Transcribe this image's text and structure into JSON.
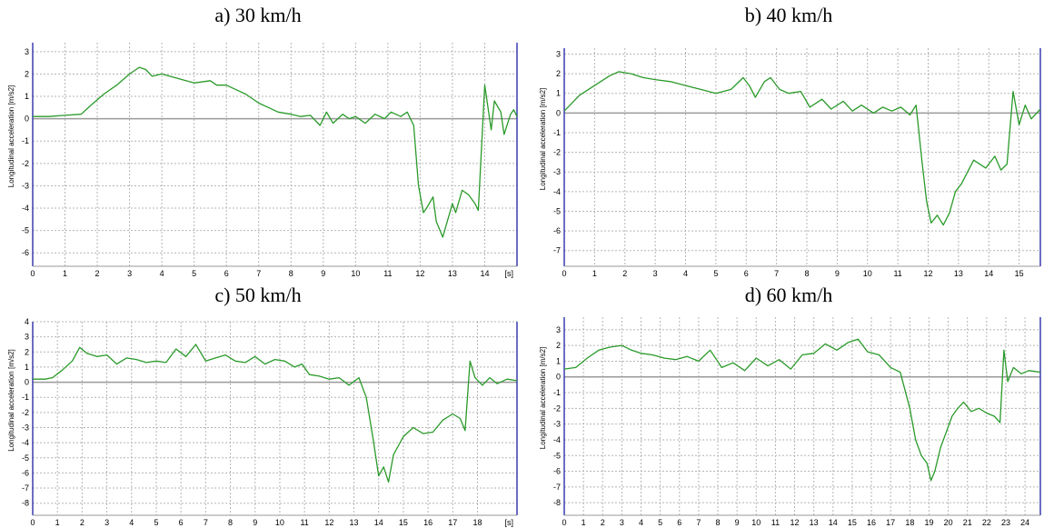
{
  "chart_data": [
    {
      "type": "line",
      "title": "a) 30 km/h",
      "ylabel": "Longitudinal acceleration [m/s2]",
      "x_unit": "[s]",
      "xlim": [
        0,
        15
      ],
      "ylim": [
        -6.6,
        3.4
      ],
      "xticks": [
        "0",
        "1",
        "2",
        "3",
        "4",
        "5",
        "6",
        "7",
        "8",
        "9",
        "10",
        "11",
        "12",
        "13",
        "14"
      ],
      "yticks": [
        "3",
        "2",
        "1",
        "0",
        "-1",
        "-2",
        "-3",
        "-4",
        "-5",
        "-6"
      ],
      "grid": true,
      "line_color": "#2a9a2a",
      "x": [
        0,
        0.5,
        1,
        1.5,
        1.8,
        2.2,
        2.6,
        3,
        3.3,
        3.5,
        3.7,
        4,
        4.5,
        5,
        5.5,
        5.7,
        6,
        6.3,
        6.6,
        7,
        7.3,
        7.6,
        8,
        8.3,
        8.6,
        8.9,
        9.1,
        9.3,
        9.6,
        9.8,
        10,
        10.3,
        10.6,
        10.9,
        11.1,
        11.4,
        11.6,
        11.8,
        11.95,
        12.1,
        12.2,
        12.4,
        12.5,
        12.7,
        12.8,
        13,
        13.1,
        13.3,
        13.5,
        13.7,
        13.8,
        14,
        14.2,
        14.3,
        14.5,
        14.6,
        14.8,
        14.9,
        15
      ],
      "values": [
        0.1,
        0.1,
        0.15,
        0.2,
        0.6,
        1.1,
        1.5,
        2.0,
        2.3,
        2.2,
        1.9,
        2.0,
        1.8,
        1.6,
        1.7,
        1.5,
        1.5,
        1.3,
        1.1,
        0.7,
        0.5,
        0.3,
        0.2,
        0.1,
        0.15,
        -0.3,
        0.3,
        -0.2,
        0.2,
        0.0,
        0.1,
        -0.2,
        0.2,
        0.0,
        0.3,
        0.1,
        0.3,
        -0.3,
        -3.0,
        -4.2,
        -4.0,
        -3.5,
        -4.6,
        -5.3,
        -4.8,
        -3.8,
        -4.2,
        -3.2,
        -3.4,
        -3.8,
        -4.1,
        1.5,
        -0.5,
        0.8,
        0.3,
        -0.7,
        0.2,
        0.4,
        0.1
      ]
    },
    {
      "type": "line",
      "title": "b) 40 km/h",
      "ylabel": "Longitudinal acceleration [m/s2]",
      "x_unit": "",
      "xlim": [
        0,
        15.7
      ],
      "ylim": [
        -7.8,
        3.3
      ],
      "xticks": [
        "0",
        "1",
        "2",
        "3",
        "4",
        "5",
        "6",
        "7",
        "8",
        "9",
        "10",
        "11",
        "12",
        "13",
        "14",
        "15"
      ],
      "yticks": [
        "3",
        "2",
        "1",
        "0",
        "-1",
        "-2",
        "-3",
        "-4",
        "-5",
        "-6",
        "-7"
      ],
      "grid": true,
      "line_color": "#2a9a2a",
      "x": [
        0,
        0.5,
        1,
        1.5,
        1.8,
        2.2,
        2.6,
        3,
        3.5,
        4,
        4.5,
        5,
        5.5,
        5.9,
        6.1,
        6.3,
        6.6,
        6.8,
        7.1,
        7.4,
        7.8,
        8.1,
        8.5,
        8.8,
        9.2,
        9.5,
        9.8,
        10.2,
        10.5,
        10.8,
        11.1,
        11.4,
        11.6,
        11.8,
        11.95,
        12.1,
        12.3,
        12.5,
        12.7,
        12.9,
        13.1,
        13.3,
        13.5,
        13.7,
        13.9,
        14.2,
        14.4,
        14.6,
        14.8,
        15,
        15.2,
        15.4,
        15.7
      ],
      "values": [
        0.1,
        0.9,
        1.4,
        1.9,
        2.1,
        2.0,
        1.8,
        1.7,
        1.6,
        1.4,
        1.2,
        1.0,
        1.2,
        1.8,
        1.4,
        0.8,
        1.6,
        1.8,
        1.2,
        1.0,
        1.1,
        0.3,
        0.7,
        0.2,
        0.6,
        0.1,
        0.4,
        0.0,
        0.3,
        0.1,
        0.3,
        -0.1,
        0.4,
        -2.5,
        -4.5,
        -5.6,
        -5.2,
        -5.7,
        -5.1,
        -4.0,
        -3.6,
        -3.0,
        -2.4,
        -2.6,
        -2.8,
        -2.2,
        -2.9,
        -2.6,
        1.1,
        -0.6,
        0.4,
        -0.3,
        0.2
      ]
    },
    {
      "type": "line",
      "title": "c) 50 km/h",
      "ylabel": "Longitudinal acceleration [m/s2]",
      "x_unit": "[s]",
      "xlim": [
        0,
        19.6
      ],
      "ylim": [
        -8.8,
        4
      ],
      "xticks": [
        "0",
        "1",
        "2",
        "3",
        "4",
        "5",
        "6",
        "7",
        "8",
        "9",
        "10",
        "11",
        "12",
        "13",
        "14",
        "15",
        "16",
        "17",
        "18"
      ],
      "yticks": [
        "4",
        "3",
        "2",
        "1",
        "0",
        "-1",
        "-2",
        "-3",
        "-4",
        "-5",
        "-6",
        "-7",
        "-8"
      ],
      "grid": true,
      "line_color": "#2a9a2a",
      "x": [
        0,
        0.5,
        0.8,
        1.2,
        1.6,
        1.9,
        2.2,
        2.6,
        3,
        3.4,
        3.8,
        4.2,
        4.6,
        5,
        5.4,
        5.8,
        6.2,
        6.6,
        7,
        7.4,
        7.8,
        8.2,
        8.6,
        9,
        9.4,
        9.8,
        10.2,
        10.6,
        10.9,
        11.2,
        11.6,
        12,
        12.4,
        12.8,
        13.2,
        13.5,
        13.8,
        14.0,
        14.2,
        14.4,
        14.6,
        15,
        15.4,
        15.8,
        16.2,
        16.6,
        17,
        17.3,
        17.5,
        17.7,
        17.9,
        18.2,
        18.5,
        18.8,
        19.2,
        19.6
      ],
      "values": [
        0.2,
        0.2,
        0.3,
        0.8,
        1.4,
        2.3,
        1.9,
        1.7,
        1.8,
        1.2,
        1.6,
        1.5,
        1.3,
        1.4,
        1.3,
        2.2,
        1.7,
        2.5,
        1.4,
        1.6,
        1.8,
        1.4,
        1.3,
        1.7,
        1.2,
        1.5,
        1.4,
        1.0,
        1.2,
        0.5,
        0.4,
        0.2,
        0.3,
        -0.2,
        0.3,
        -1.0,
        -4.0,
        -6.2,
        -5.6,
        -6.6,
        -4.8,
        -3.6,
        -3.0,
        -3.4,
        -3.3,
        -2.5,
        -2.1,
        -2.4,
        -3.2,
        1.4,
        0.3,
        -0.2,
        0.3,
        -0.1,
        0.2,
        0.1
      ]
    },
    {
      "type": "line",
      "title": "d) 60 km/h",
      "ylabel": "Longitudinal acceleration [m/s2]",
      "x_unit": "",
      "xlim": [
        0,
        24.8
      ],
      "ylim": [
        -8.8,
        3.8
      ],
      "xticks": [
        "0",
        "1",
        "2",
        "3",
        "4",
        "5",
        "6",
        "7",
        "8",
        "9",
        "10",
        "11",
        "12",
        "13",
        "14",
        "15",
        "16",
        "17",
        "18",
        "19",
        "20",
        "21",
        "22",
        "23",
        "24"
      ],
      "yticks": [
        "3",
        "2",
        "1",
        "0",
        "-1",
        "-2",
        "-3",
        "-4",
        "-5",
        "-6",
        "-7",
        "-8"
      ],
      "grid": true,
      "line_color": "#2a9a2a",
      "x": [
        0,
        0.6,
        1.2,
        1.8,
        2.4,
        3,
        3.5,
        4,
        4.6,
        5.2,
        5.8,
        6.4,
        7,
        7.6,
        8.2,
        8.8,
        9.4,
        10,
        10.6,
        11.2,
        11.8,
        12.4,
        13,
        13.6,
        14.2,
        14.8,
        15.3,
        15.8,
        16.4,
        17,
        17.5,
        18,
        18.3,
        18.6,
        18.9,
        19.1,
        19.3,
        19.6,
        19.9,
        20.2,
        20.5,
        20.8,
        21.2,
        21.6,
        22,
        22.4,
        22.7,
        22.9,
        23.1,
        23.4,
        23.8,
        24.2,
        24.8
      ],
      "values": [
        0.5,
        0.6,
        1.2,
        1.7,
        1.9,
        2.0,
        1.7,
        1.5,
        1.4,
        1.2,
        1.1,
        1.3,
        1.0,
        1.7,
        0.6,
        0.9,
        0.4,
        1.2,
        0.7,
        1.1,
        0.5,
        1.4,
        1.5,
        2.1,
        1.7,
        2.2,
        2.4,
        1.6,
        1.4,
        0.6,
        0.3,
        -2.0,
        -4.0,
        -5.0,
        -5.5,
        -6.6,
        -6.0,
        -4.5,
        -3.5,
        -2.5,
        -2.0,
        -1.6,
        -2.2,
        -2.0,
        -2.3,
        -2.5,
        -2.9,
        1.7,
        -0.3,
        0.6,
        0.2,
        0.4,
        0.3
      ]
    }
  ]
}
